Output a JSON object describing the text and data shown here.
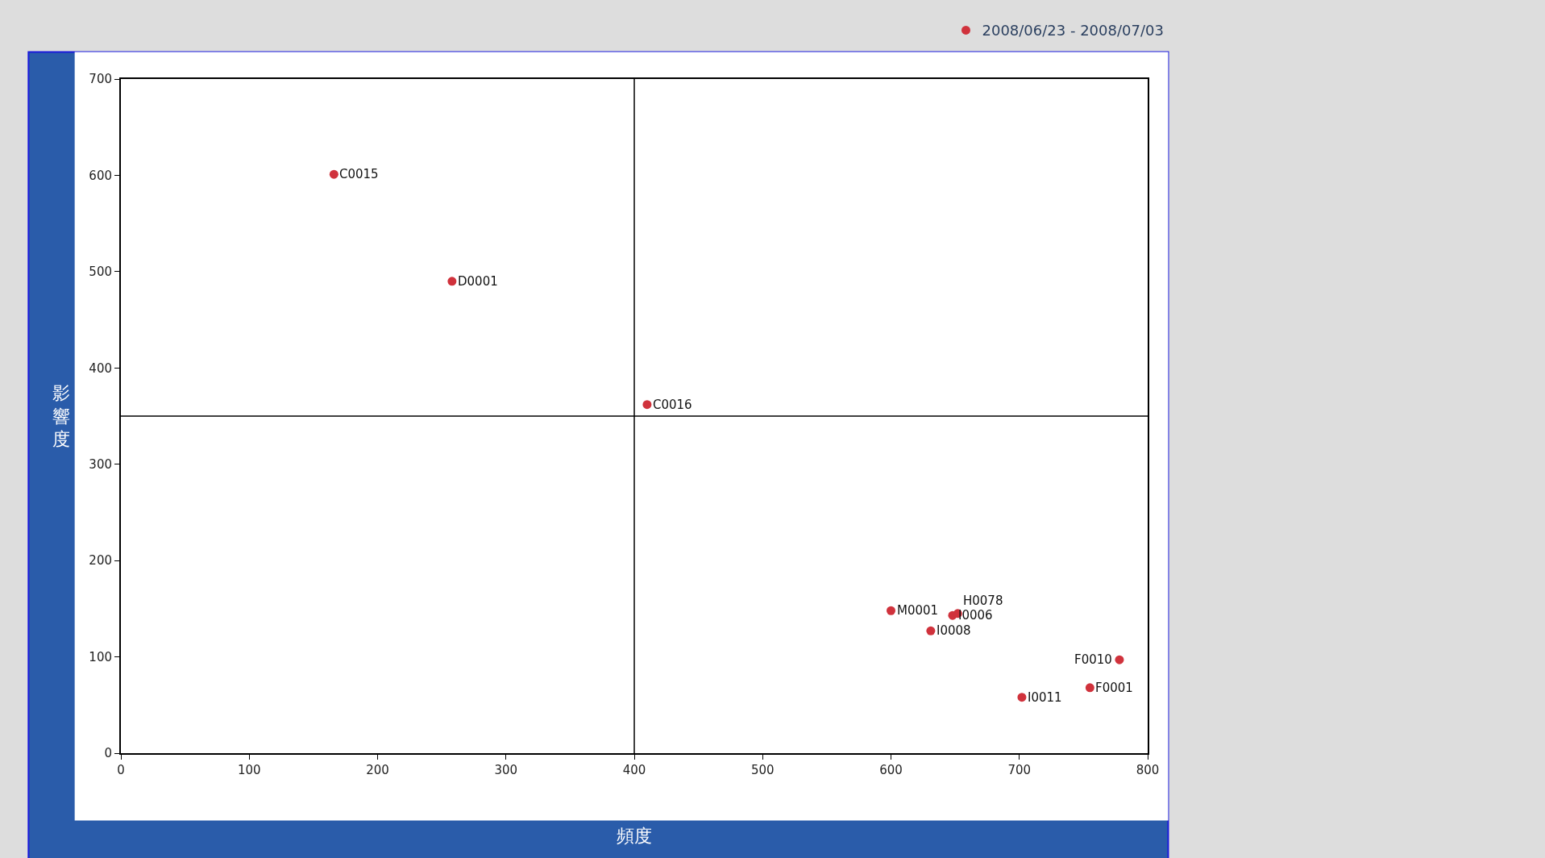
{
  "chart_data": {
    "type": "scatter",
    "xlabel": "頻度",
    "ylabel": "影響度",
    "xlim": [
      0,
      800
    ],
    "xticks": [
      0,
      100,
      200,
      300,
      400,
      500,
      600,
      700,
      800
    ],
    "ylim": [
      0,
      700
    ],
    "yticks": [
      0,
      100,
      200,
      300,
      400,
      500,
      600,
      700
    ],
    "grid": false,
    "legend": "top right",
    "marker": "circle",
    "series": [
      {
        "name": "2008/06/23 - 2008/07/03",
        "color": "#d0323c",
        "x": [
          166,
          258,
          410,
          600,
          648,
          652,
          631,
          778,
          755,
          702
        ],
        "values": [
          601,
          490,
          362,
          148,
          143,
          145,
          127,
          97,
          68,
          58
        ]
      }
    ],
    "ref_lines": [
      {
        "axis": "x",
        "value": 400,
        "color": "#000000"
      },
      {
        "axis": "y",
        "value": 350,
        "color": "#000000"
      }
    ],
    "annotations": [
      {
        "text": "C0015",
        "x": 166,
        "y": 601
      },
      {
        "text": "D0001",
        "x": 258,
        "y": 490
      },
      {
        "text": "C0016",
        "x": 410,
        "y": 362
      },
      {
        "text": "M0001",
        "x": 600,
        "y": 148
      },
      {
        "text": "I0006",
        "x": 648,
        "y": 143
      },
      {
        "text": "H0078",
        "x": 652,
        "y": 145
      },
      {
        "text": "I0008",
        "x": 631,
        "y": 127
      },
      {
        "text": "F0010",
        "x": 778,
        "y": 97
      },
      {
        "text": "F0001",
        "x": 755,
        "y": 68
      },
      {
        "text": "I0011",
        "x": 702,
        "y": 58
      }
    ]
  }
}
